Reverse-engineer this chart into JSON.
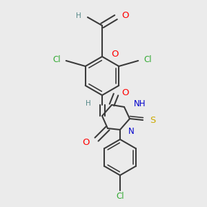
{
  "bg": "#ebebeb",
  "bond_color": "#3a3a3a",
  "figsize": [
    3.0,
    3.0
  ],
  "dpi": 100,
  "colors": {
    "O": "#ff0000",
    "N": "#0000cc",
    "S": "#ccaa00",
    "Cl": "#33aa33",
    "H": "#558888",
    "C": "#3a3a3a"
  }
}
